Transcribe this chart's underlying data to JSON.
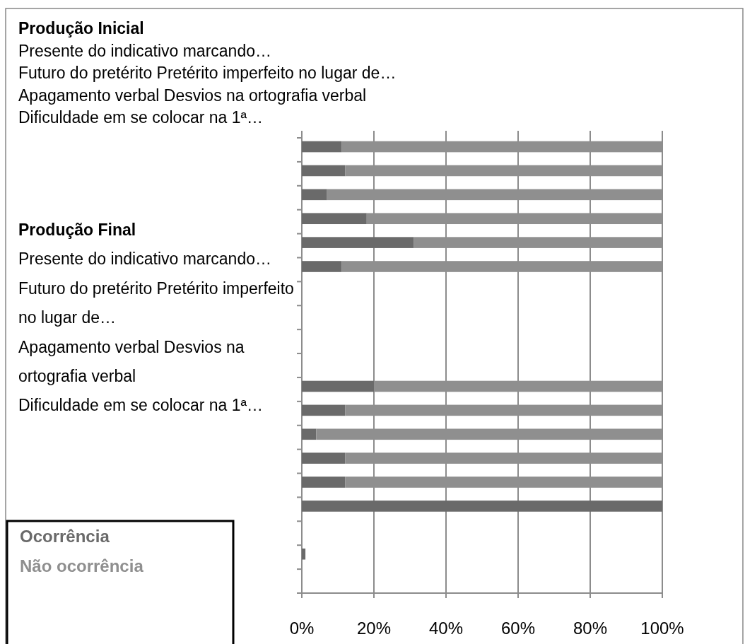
{
  "chart_data": {
    "type": "bar",
    "orientation": "horizontal",
    "stacked": true,
    "categories": [
      null,
      null,
      null,
      null,
      null,
      null,
      null,
      null,
      null,
      null,
      null,
      null,
      null,
      null,
      null,
      null,
      null,
      null,
      null
    ],
    "series": [
      {
        "name": "Ocorrência",
        "color": "#6a6a6a",
        "values": [
          11,
          12,
          7,
          18,
          31,
          11,
          null,
          null,
          null,
          null,
          20,
          12,
          4,
          12,
          12,
          100,
          null,
          1,
          null
        ]
      },
      {
        "name": "Não ocorrência",
        "color": "#8f8f8f",
        "values": [
          89,
          88,
          93,
          82,
          69,
          89,
          null,
          null,
          null,
          null,
          80,
          88,
          96,
          88,
          88,
          null,
          null,
          null,
          null
        ]
      }
    ],
    "xlim": [
      0,
      100
    ],
    "xticks": [
      {
        "value": 0,
        "label": "0%"
      },
      {
        "value": 20,
        "label": "20%"
      },
      {
        "value": 40,
        "label": "40%"
      },
      {
        "value": 60,
        "label": "60%"
      },
      {
        "value": 80,
        "label": "80%"
      },
      {
        "value": 100,
        "label": "100%"
      }
    ],
    "grid": "x",
    "legend": "bottom left",
    "tick_labels": "x",
    "annotations": [
      "Produção Inicial",
      "Presente do indicativo marcando…",
      "Futuro do pretérito Pretérito imperfeito no lugar de…",
      "Apagamento verbal Desvios na ortografia verbal",
      "Dificuldade em se colocar na 1ª…",
      "Produção Final",
      "Presente do indicativo marcando…",
      "Futuro do pretérito Pretérito imperfeito no lugar de…",
      "Apagamento verbal Desvios na ortografia verbal",
      "Dificuldade em se colocar na 1ª…"
    ]
  }
}
